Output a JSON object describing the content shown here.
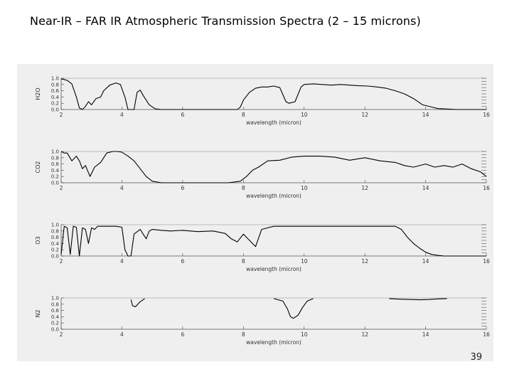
{
  "slide": {
    "title": "Near-IR – FAR IR Atmospheric Transmission Spectra (2 – 15 microns)",
    "page_number": "39"
  },
  "colors": {
    "panel_background": "#efefef",
    "line": "#000000",
    "page_background": "#ffffff"
  },
  "chart_data": [
    {
      "type": "line",
      "ylabel": "H2O",
      "xlabel": "wavelength (micron)",
      "xlim": [
        2,
        16
      ],
      "ylim": [
        0,
        1
      ],
      "x_ticks": [
        "2",
        "4",
        "6",
        "8",
        "10",
        "12",
        "14",
        "16"
      ],
      "y_ticks": [
        "0.0",
        "0.2",
        "0.4",
        "0.6",
        "0.8",
        "1.0"
      ],
      "series": [
        {
          "x": [
            2.0,
            2.1,
            2.2,
            2.35,
            2.5,
            2.6,
            2.7,
            2.8,
            2.9,
            3.0,
            3.15,
            3.3,
            3.4,
            3.6,
            3.8,
            3.95,
            4.1,
            4.2,
            4.3,
            4.4,
            4.5,
            4.6,
            4.7,
            4.8,
            4.9,
            5.1,
            5.3,
            5.5,
            5.8,
            6.0,
            6.3,
            6.6,
            6.9,
            7.2,
            7.5,
            7.8,
            7.9,
            8.0,
            8.2,
            8.4,
            8.6,
            8.8,
            9.0,
            9.2,
            9.4,
            9.5,
            9.7,
            9.9,
            10.0,
            10.3,
            10.6,
            10.9,
            11.2,
            11.5,
            11.8,
            12.1,
            12.4,
            12.7,
            13.0,
            13.3,
            13.6,
            13.9,
            14.2,
            14.4,
            14.6,
            15.0,
            15.5,
            16.0
          ],
          "y": [
            0.98,
            0.96,
            0.93,
            0.82,
            0.4,
            0.05,
            0.0,
            0.1,
            0.25,
            0.15,
            0.35,
            0.4,
            0.6,
            0.78,
            0.85,
            0.8,
            0.4,
            0.0,
            0.0,
            0.0,
            0.55,
            0.62,
            0.45,
            0.3,
            0.15,
            0.02,
            0.0,
            0.0,
            0.0,
            0.0,
            0.0,
            0.0,
            0.0,
            0.0,
            0.0,
            0.0,
            0.08,
            0.3,
            0.55,
            0.68,
            0.72,
            0.72,
            0.75,
            0.7,
            0.25,
            0.2,
            0.25,
            0.72,
            0.8,
            0.82,
            0.8,
            0.78,
            0.8,
            0.78,
            0.76,
            0.75,
            0.72,
            0.68,
            0.6,
            0.5,
            0.35,
            0.15,
            0.08,
            0.03,
            0.02,
            0.0,
            0.0,
            0.0
          ]
        }
      ]
    },
    {
      "type": "line",
      "ylabel": "CO2",
      "xlabel": "wavelength (micron)",
      "xlim": [
        2,
        16
      ],
      "ylim": [
        0,
        1
      ],
      "x_ticks": [
        "2",
        "4",
        "6",
        "8",
        "10",
        "12",
        "14",
        "16"
      ],
      "y_ticks": [
        "0.0",
        "0.2",
        "0.4",
        "0.6",
        "0.8",
        "1.0"
      ],
      "series": [
        {
          "x": [
            2.0,
            2.1,
            2.2,
            2.35,
            2.5,
            2.6,
            2.7,
            2.8,
            2.95,
            3.1,
            3.3,
            3.5,
            3.7,
            3.85,
            4.0,
            4.2,
            4.4,
            4.6,
            4.8,
            5.0,
            5.3,
            5.6,
            6.0,
            6.5,
            7.0,
            7.5,
            7.9,
            8.1,
            8.3,
            8.5,
            8.8,
            9.2,
            9.6,
            10.0,
            10.5,
            11.0,
            11.5,
            12.0,
            12.5,
            13.0,
            13.3,
            13.6,
            14.0,
            14.3,
            14.6,
            14.9,
            15.2,
            15.5,
            15.8,
            16.0
          ],
          "y": [
            1.0,
            0.95,
            0.95,
            0.7,
            0.85,
            0.7,
            0.45,
            0.55,
            0.2,
            0.5,
            0.65,
            0.95,
            1.0,
            1.0,
            0.98,
            0.85,
            0.7,
            0.45,
            0.2,
            0.05,
            0.0,
            0.0,
            0.0,
            0.0,
            0.0,
            0.0,
            0.05,
            0.2,
            0.4,
            0.5,
            0.7,
            0.72,
            0.82,
            0.85,
            0.85,
            0.82,
            0.72,
            0.8,
            0.7,
            0.65,
            0.55,
            0.5,
            0.6,
            0.5,
            0.55,
            0.5,
            0.6,
            0.45,
            0.35,
            0.2
          ]
        }
      ]
    },
    {
      "type": "line",
      "ylabel": "O3",
      "xlabel": "wavelength (micron)",
      "xlim": [
        2,
        16
      ],
      "ylim": [
        0,
        1
      ],
      "x_ticks": [
        "2",
        "4",
        "6",
        "8",
        "10",
        "12",
        "14",
        "16"
      ],
      "y_ticks": [
        "0.0",
        "0.2",
        "0.4",
        "0.6",
        "0.8",
        "1.0"
      ],
      "series": [
        {
          "x": [
            2.0,
            2.1,
            2.2,
            2.3,
            2.4,
            2.5,
            2.6,
            2.7,
            2.8,
            2.9,
            3.0,
            3.1,
            3.2,
            3.4,
            3.6,
            3.8,
            4.0,
            4.1,
            4.2,
            4.3,
            4.4,
            4.6,
            4.7,
            4.8,
            4.9,
            5.0,
            5.3,
            5.6,
            6.0,
            6.5,
            7.0,
            7.4,
            7.6,
            7.8,
            8.0,
            8.2,
            8.4,
            8.6,
            9.0,
            9.5,
            10.0,
            10.5,
            11.0,
            11.5,
            12.0,
            12.5,
            13.0,
            13.2,
            13.4,
            13.6,
            13.8,
            14.0,
            14.2,
            14.4,
            14.6,
            14.8,
            15.0,
            15.5,
            16.0
          ],
          "y": [
            0.05,
            0.95,
            0.9,
            0.05,
            0.95,
            0.92,
            0.0,
            0.9,
            0.85,
            0.4,
            0.9,
            0.85,
            0.95,
            0.95,
            0.95,
            0.95,
            0.92,
            0.2,
            0.0,
            0.0,
            0.7,
            0.85,
            0.7,
            0.55,
            0.8,
            0.85,
            0.82,
            0.8,
            0.82,
            0.78,
            0.8,
            0.72,
            0.55,
            0.45,
            0.7,
            0.5,
            0.3,
            0.85,
            0.95,
            0.95,
            0.95,
            0.95,
            0.95,
            0.95,
            0.95,
            0.95,
            0.95,
            0.85,
            0.6,
            0.4,
            0.25,
            0.12,
            0.05,
            0.02,
            0.0,
            0.0,
            0.0,
            0.0,
            0.0
          ]
        }
      ]
    },
    {
      "type": "line",
      "ylabel": "N2",
      "xlabel": "wavelength (micron)",
      "xlim": [
        2,
        16
      ],
      "ylim": [
        0,
        1
      ],
      "x_ticks": [
        "2",
        "4",
        "6",
        "8",
        "10",
        "12",
        "14",
        "16"
      ],
      "y_ticks": [
        "0.0",
        "0.2",
        "0.4",
        "0.6",
        "0.8",
        "1.0"
      ],
      "series": [
        {
          "x": [
            4.3,
            4.35,
            4.45,
            4.6,
            4.75
          ],
          "y": [
            0.95,
            0.75,
            0.72,
            0.88,
            0.98
          ]
        },
        {
          "x": [
            9.0,
            9.3,
            9.45,
            9.55,
            9.65,
            9.8,
            9.95,
            10.1,
            10.3
          ],
          "y": [
            0.98,
            0.9,
            0.65,
            0.4,
            0.35,
            0.45,
            0.7,
            0.9,
            0.98
          ]
        },
        {
          "x": [
            12.8,
            13.2,
            13.5,
            13.8,
            14.1,
            14.4,
            14.7
          ],
          "y": [
            0.98,
            0.96,
            0.95,
            0.94,
            0.95,
            0.97,
            0.98
          ]
        }
      ]
    }
  ]
}
